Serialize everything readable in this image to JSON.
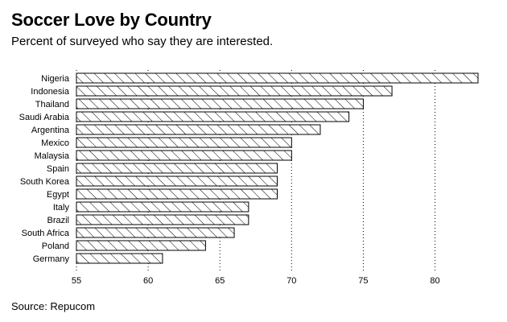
{
  "chart_data": {
    "type": "bar",
    "orientation": "horizontal",
    "title": "Soccer Love by Country",
    "subtitle": "Percent of surveyed who say they are interested.",
    "source": "Source: Repucom",
    "categories": [
      "Nigeria",
      "Indonesia",
      "Thailand",
      "Saudi Arabia",
      "Argentina",
      "Mexico",
      "Malaysia",
      "Spain",
      "South Korea",
      "Egypt",
      "Italy",
      "Brazil",
      "South Africa",
      "Poland",
      "Germany"
    ],
    "values": [
      83,
      77,
      75,
      74,
      72,
      70,
      70,
      69,
      69,
      69,
      67,
      67,
      66,
      64,
      61
    ],
    "xlim": [
      55,
      83
    ],
    "xticks": [
      55,
      60,
      65,
      70,
      75,
      80
    ],
    "xlabel": "",
    "ylabel": "",
    "grid": "vertical dotted",
    "bar_fill": "diagonal hatch"
  }
}
